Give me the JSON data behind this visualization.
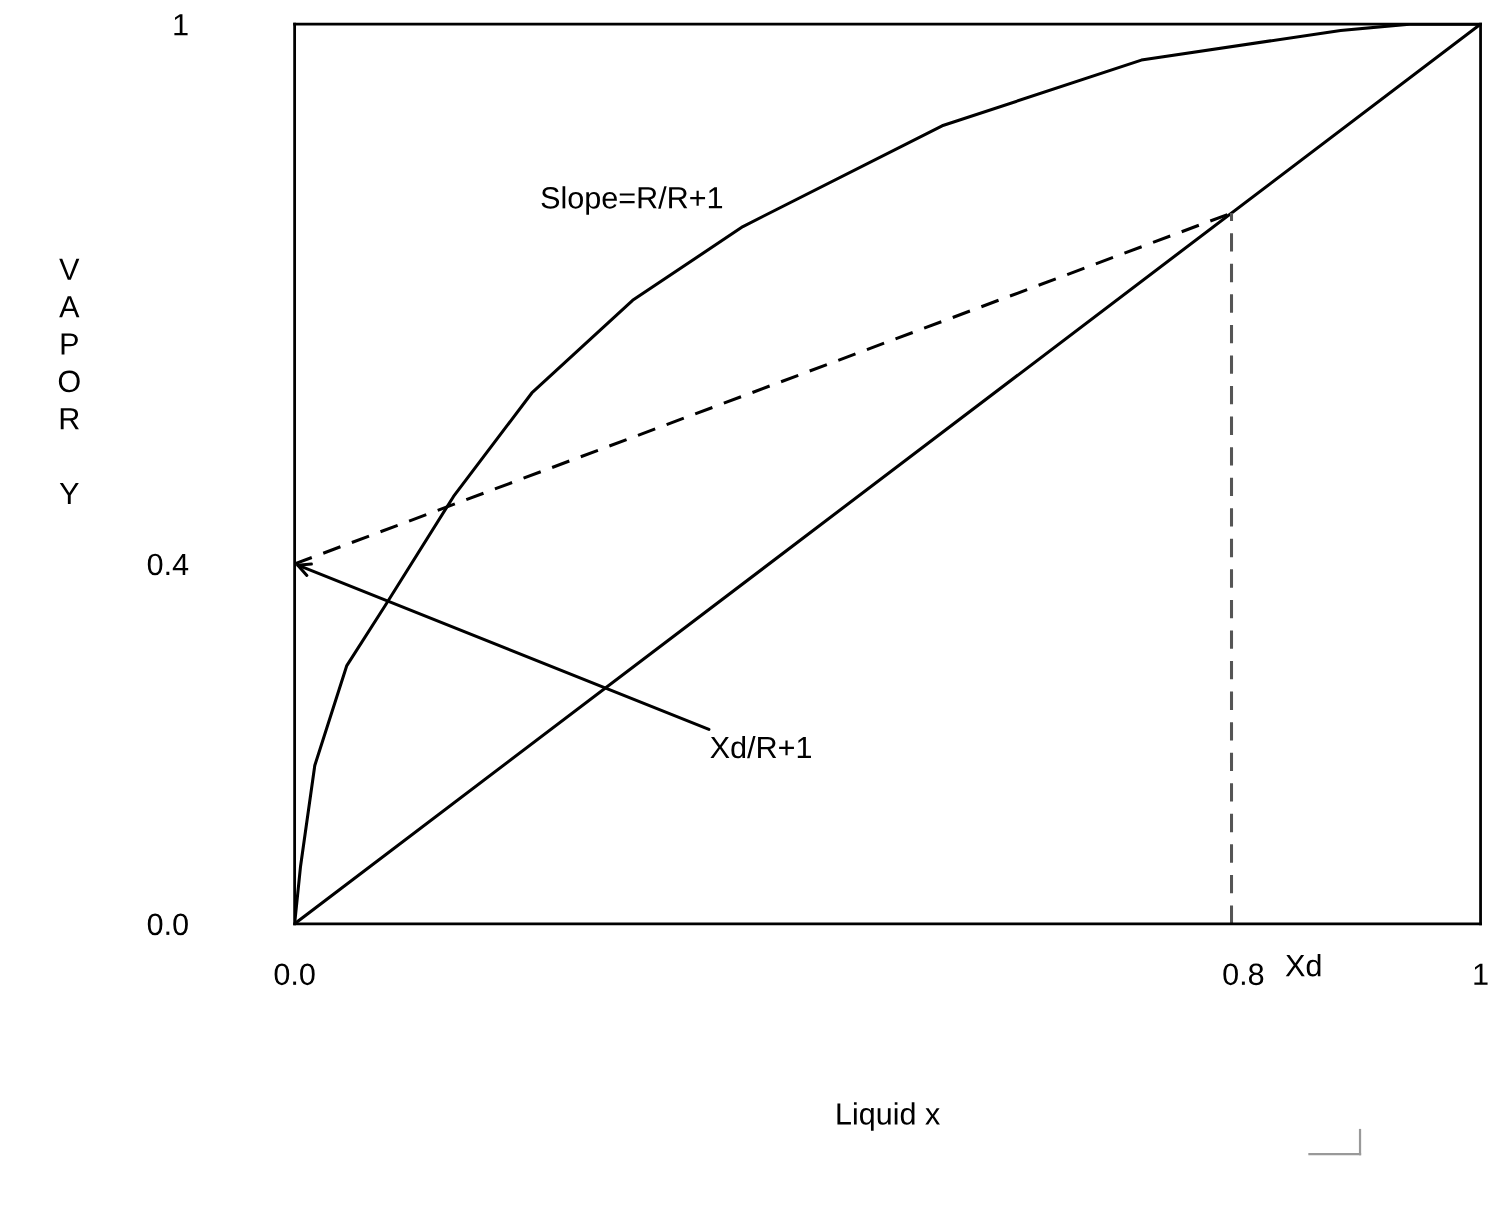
{
  "chart_data": {
    "type": "line",
    "xlabel": "Liquid x",
    "ylabel": "VAPOR Y",
    "xlim": [
      0,
      1
    ],
    "ylim": [
      0,
      1
    ],
    "xticks": [
      {
        "value": 0,
        "label": "0.0"
      },
      0.8,
      1
    ],
    "yticks": [
      {
        "value": 0,
        "label": "0.0"
      },
      0.4,
      1
    ],
    "grid": false,
    "marker": "none",
    "series": [
      {
        "color": "#000000",
        "line_style": "solid",
        "x": [
          0,
          0.005,
          0.017,
          0.044,
          0.076,
          0.134,
          0.2,
          0.285,
          0.378,
          0.546,
          0.714,
          0.882,
          0.94,
          1
        ],
        "values": [
          0,
          0.064,
          0.176,
          0.287,
          0.353,
          0.475,
          0.59,
          0.693,
          0.775,
          0.887,
          0.96,
          0.993,
          1,
          1
        ]
      },
      {
        "color": "#000000",
        "line_style": "solid",
        "x": [
          0,
          1
        ],
        "values": [
          0,
          1
        ]
      },
      {
        "color": "#000000",
        "line_style": "dashed",
        "x": [
          0,
          0.79
        ],
        "values": [
          0.4,
          0.79
        ]
      },
      {
        "color": "#555555",
        "line_style": "dashed",
        "x": [
          0.79,
          0.79
        ],
        "values": [
          0,
          0.79
        ]
      }
    ],
    "annotations": [
      "Slope=R/R+1",
      {
        "text": "Xd/R+1",
        "x": 0,
        "y": 0.4
      },
      {
        "text": "Xd",
        "x": 0.79,
        "y": 0
      }
    ]
  }
}
